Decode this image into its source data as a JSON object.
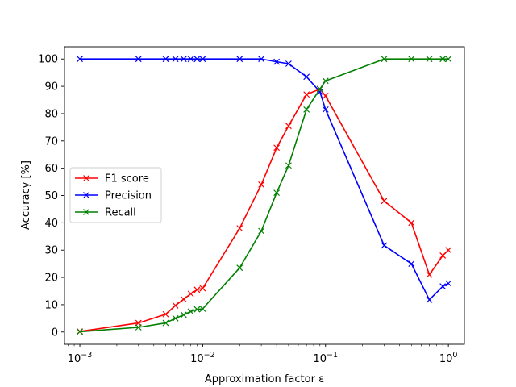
{
  "chart_data": {
    "type": "line",
    "title": "",
    "xlabel": "Approximation factor ε",
    "ylabel": "Accuracy [%]",
    "xscale": "log",
    "xlim": [
      0.00075,
      1.35
    ],
    "ylim": [
      -4.5,
      104.5
    ],
    "grid": false,
    "legend_position": "center-left",
    "xticks": [
      {
        "value": 0.001,
        "base": "10",
        "exp": "−3"
      },
      {
        "value": 0.01,
        "base": "10",
        "exp": "−2"
      },
      {
        "value": 0.1,
        "base": "10",
        "exp": "−1"
      },
      {
        "value": 1,
        "base": "10",
        "exp": "0"
      }
    ],
    "yticks": [
      0,
      10,
      20,
      30,
      40,
      50,
      60,
      70,
      80,
      90,
      100
    ],
    "x": [
      0.001,
      0.003,
      0.005,
      0.006,
      0.007,
      0.008,
      0.009,
      0.01,
      0.02,
      0.03,
      0.04,
      0.05,
      0.07,
      0.09,
      0.1,
      0.3,
      0.5,
      0.7,
      0.9,
      1.0
    ],
    "series": [
      {
        "name": "F1 score",
        "color": "#ff0000",
        "marker": "x",
        "values": [
          0.2,
          3.3,
          6.5,
          9.7,
          12,
          14,
          15.5,
          16,
          38,
          54,
          67.5,
          75.5,
          87,
          89,
          86.5,
          48,
          40,
          21,
          28,
          30
        ]
      },
      {
        "name": "Precision",
        "color": "#0000ff",
        "marker": "x",
        "values": [
          100,
          100,
          100,
          100,
          100,
          100,
          100,
          100,
          100,
          100,
          99,
          98.3,
          93.5,
          88,
          81.5,
          31.7,
          25,
          11.8,
          16.7,
          17.8
        ]
      },
      {
        "name": "Recall",
        "color": "#008000",
        "marker": "x",
        "values": [
          0.1,
          1.7,
          3.3,
          5,
          6.3,
          7.5,
          8.3,
          8.5,
          23.5,
          37,
          51,
          61,
          81.5,
          89,
          92,
          100,
          100,
          100,
          100,
          100
        ]
      }
    ]
  }
}
